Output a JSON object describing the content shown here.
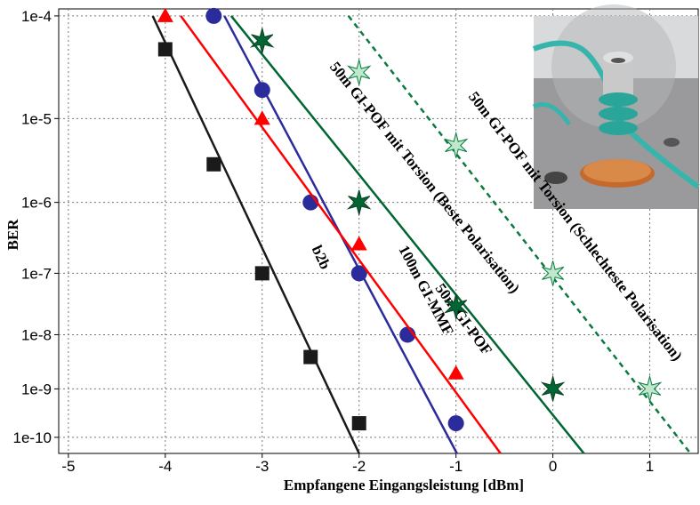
{
  "chart_data": {
    "type": "scatter",
    "x_label": "Empfangene Eingangsleistung [dBm]",
    "y_label": "BER",
    "yscale": "loglog",
    "grid": true,
    "xlim": [
      -5.1,
      1.5
    ],
    "ylim": [
      0.000115,
      4.4e-11
    ],
    "xticks": [
      -5,
      -4,
      -3,
      -2,
      -1,
      0,
      1
    ],
    "yticks": [
      {
        "value": 0.0001,
        "label": "1e-4"
      },
      {
        "value": 1e-05,
        "label": "1e-5"
      },
      {
        "value": 1e-06,
        "label": "1e-6"
      },
      {
        "value": 1e-07,
        "label": "1e-7"
      },
      {
        "value": 1e-08,
        "label": "1e-8"
      },
      {
        "value": 1e-09,
        "label": "1e-9"
      },
      {
        "value": 1e-10,
        "label": "1e-10"
      }
    ],
    "series": [
      {
        "name": "b2b",
        "color": "#1a1a1a",
        "marker": "square",
        "dashed": false,
        "x": [
          -4,
          -3.5,
          -3,
          -2.5,
          -2
        ],
        "values": [
          5e-05,
          3e-06,
          1e-07,
          4e-09,
          2e-10
        ],
        "fit": {
          "x": [
            -4.13,
            -2.0
          ],
          "values": [
            0.0001,
            4.4e-11
          ]
        }
      },
      {
        "name": "100m GI-MMF",
        "color": "#2b2b9b",
        "marker": "circle",
        "dashed": false,
        "x": [
          -3.5,
          -3,
          -2.5,
          -2,
          -1.5,
          -1
        ],
        "values": [
          0.0001,
          2e-05,
          1e-06,
          1e-07,
          1e-08,
          2e-10
        ],
        "fit": {
          "x": [
            -3.39,
            -0.99
          ],
          "values": [
            0.0001,
            4.4e-11
          ]
        }
      },
      {
        "name": "50m GI-POF",
        "color": "#ff0000",
        "marker": "triangle",
        "dashed": false,
        "x": [
          -4,
          -3,
          -2,
          -1
        ],
        "values": [
          0.0001,
          1e-05,
          2.7e-07,
          2e-09
        ],
        "fit": {
          "x": [
            -3.84,
            -0.54
          ],
          "values": [
            0.0001,
            4.4e-11
          ]
        }
      },
      {
        "name": "50m GI-POF mit Torsion (Beste Polarisation)",
        "color": "#006633",
        "marker": "star",
        "dashed": false,
        "x": [
          -3,
          -2,
          -1,
          0
        ],
        "values": [
          6e-05,
          1e-06,
          3e-08,
          1e-09
        ],
        "fit": {
          "x": [
            -3.32,
            0.32
          ],
          "values": [
            0.0001,
            4.4e-11
          ]
        }
      },
      {
        "name": "50m GI-POF mit Torsion (Schlechteste Polarisation)",
        "color": "#0a7a40",
        "marker": "star-light",
        "dashed": true,
        "x": [
          -2,
          -1,
          0,
          1
        ],
        "values": [
          3e-05,
          5e-06,
          1e-07,
          1e-09
        ],
        "fit": {
          "x": [
            -2.11,
            1.42
          ],
          "values": [
            0.0001,
            4.4e-11
          ]
        }
      }
    ]
  }
}
